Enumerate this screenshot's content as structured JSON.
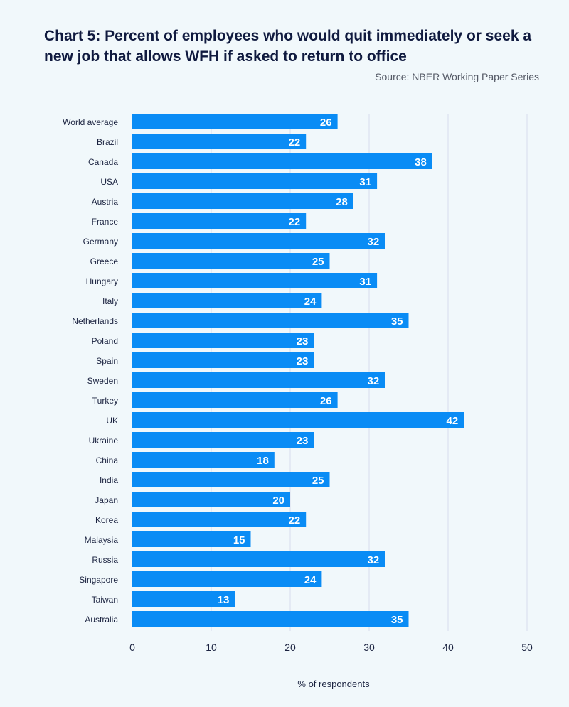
{
  "header": {
    "title": "Chart 5: Percent of employees who would quit immediately or seek a new job that allows WFH if asked to return to office",
    "source": "Source: NBER Working Paper Series"
  },
  "colors": {
    "bar": "#0a8cf5",
    "grid": "#d8dcec",
    "background": "#f1f8fb"
  },
  "chart_data": {
    "type": "bar",
    "orientation": "horizontal",
    "title": "Chart 5: Percent of employees who would quit immediately or seek a new job that allows WFH if asked to return to office",
    "xlabel": "% of respondents",
    "ylabel": "",
    "xlim": [
      0,
      50
    ],
    "xticks": [
      0,
      10,
      20,
      30,
      40,
      50
    ],
    "grid": true,
    "categories": [
      "World average",
      "Brazil",
      "Canada",
      "USA",
      "Austria",
      "France",
      "Germany",
      "Greece",
      "Hungary",
      "Italy",
      "Netherlands",
      "Poland",
      "Spain",
      "Sweden",
      "Turkey",
      "UK",
      "Ukraine",
      "China",
      "India",
      "Japan",
      "Korea",
      "Malaysia",
      "Russia",
      "Singapore",
      "Taiwan",
      "Australia"
    ],
    "values": [
      26,
      22,
      38,
      31,
      28,
      22,
      32,
      25,
      31,
      24,
      35,
      23,
      23,
      32,
      26,
      42,
      23,
      18,
      25,
      20,
      22,
      15,
      32,
      24,
      13,
      35
    ]
  }
}
